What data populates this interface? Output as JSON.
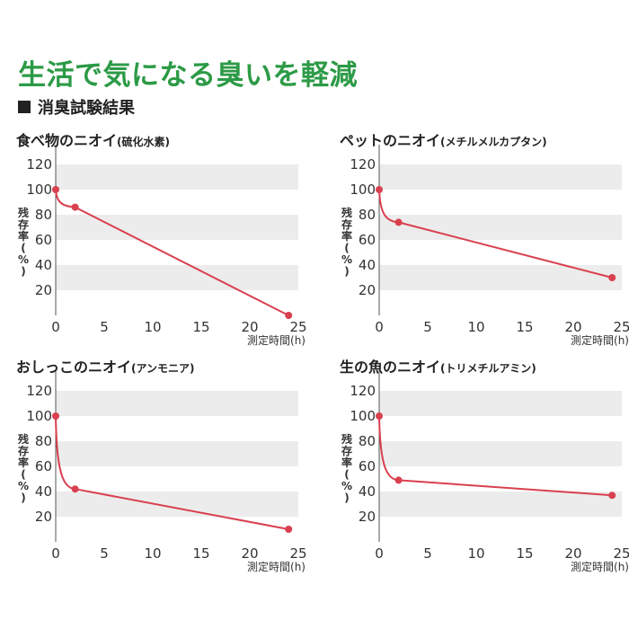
{
  "page": {
    "title": "生活で気になる臭いを軽減",
    "subtitle": "消臭試験結果"
  },
  "chart_data": [
    {
      "type": "line",
      "title": "食べ物のニオイ",
      "subtitle": "(硫化水素)",
      "xlabel": "測定時間(h)",
      "ylabel": [
        "残",
        "存",
        "率",
        "(",
        "%",
        ")"
      ],
      "x_ticks": [
        0,
        5,
        10,
        15,
        20,
        25
      ],
      "y_ticks": [
        20,
        40,
        60,
        80,
        100,
        120
      ],
      "xlim": [
        0,
        25
      ],
      "ylim": [
        0,
        130
      ],
      "line_color": "#d9404f",
      "band_color": "#ececec",
      "series": [
        {
          "x": [
            0,
            2,
            24
          ],
          "y": [
            100,
            86,
            0
          ]
        }
      ]
    },
    {
      "type": "line",
      "title": "ペットのニオイ",
      "subtitle": "(メチルメルカプタン)",
      "xlabel": "測定時間(h)",
      "ylabel": [
        "残",
        "存",
        "率",
        "(",
        "%",
        ")"
      ],
      "x_ticks": [
        0,
        5,
        10,
        15,
        20,
        25
      ],
      "y_ticks": [
        20,
        40,
        60,
        80,
        100,
        120
      ],
      "xlim": [
        0,
        25
      ],
      "ylim": [
        0,
        130
      ],
      "line_color": "#d9404f",
      "band_color": "#ececec",
      "series": [
        {
          "x": [
            0,
            2,
            24
          ],
          "y": [
            100,
            74,
            30
          ]
        }
      ]
    },
    {
      "type": "line",
      "title": "おしっこのニオイ",
      "subtitle": "(アンモニア)",
      "xlabel": "測定時間(h)",
      "ylabel": [
        "残",
        "存",
        "率",
        "(",
        "%",
        ")"
      ],
      "x_ticks": [
        0,
        5,
        10,
        15,
        20,
        25
      ],
      "y_ticks": [
        20,
        40,
        60,
        80,
        100,
        120
      ],
      "xlim": [
        0,
        25
      ],
      "ylim": [
        0,
        130
      ],
      "line_color": "#d9404f",
      "band_color": "#ececec",
      "series": [
        {
          "x": [
            0,
            2,
            24
          ],
          "y": [
            100,
            42,
            10
          ]
        }
      ]
    },
    {
      "type": "line",
      "title": "生の魚のニオイ",
      "subtitle": "(トリメチルアミン)",
      "xlabel": "測定時間(h)",
      "ylabel": [
        "残",
        "存",
        "率",
        "(",
        "%",
        ")"
      ],
      "x_ticks": [
        0,
        5,
        10,
        15,
        20,
        25
      ],
      "y_ticks": [
        20,
        40,
        60,
        80,
        100,
        120
      ],
      "xlim": [
        0,
        25
      ],
      "ylim": [
        0,
        130
      ],
      "line_color": "#d9404f",
      "band_color": "#ececec",
      "series": [
        {
          "x": [
            0,
            2,
            24
          ],
          "y": [
            100,
            49,
            37
          ]
        }
      ]
    }
  ]
}
